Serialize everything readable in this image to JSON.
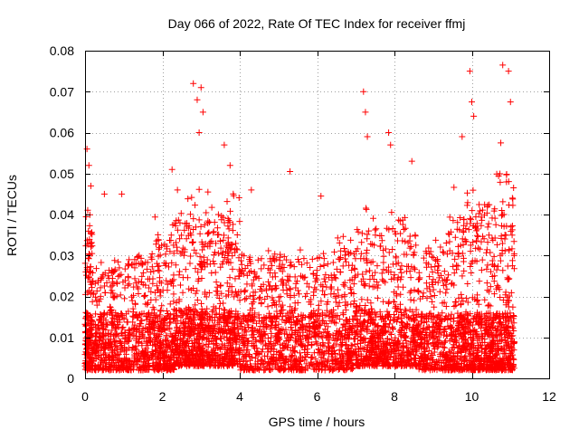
{
  "chart_data": {
    "type": "scatter",
    "title": "Day 066 of 2022, Rate Of TEC Index for receiver ffmj",
    "xlabel": "GPS time / hours",
    "ylabel": "ROTI / TECUs",
    "xlim": [
      0,
      12
    ],
    "ylim": [
      0,
      0.08
    ],
    "grid": true,
    "marker": "+",
    "color": "#ff0000",
    "x_ticks": [
      0,
      2,
      4,
      6,
      8,
      10,
      12
    ],
    "x_tick_labels": [
      "0",
      "2",
      "4",
      "6",
      "8",
      "10",
      "12"
    ],
    "y_ticks": [
      0,
      0.01,
      0.02,
      0.03,
      0.04,
      0.05,
      0.06,
      0.07,
      0.08
    ],
    "y_tick_labels": [
      "0",
      "0.01",
      "0.02",
      "0.03",
      "0.04",
      "0.05",
      "0.06",
      "0.07",
      "0.08"
    ],
    "highlighted_points": [
      {
        "x": 0.05,
        "y": 0.056
      },
      {
        "x": 0.1,
        "y": 0.052
      },
      {
        "x": 0.15,
        "y": 0.047
      },
      {
        "x": 0.5,
        "y": 0.045
      },
      {
        "x": 0.95,
        "y": 0.045
      },
      {
        "x": 2.25,
        "y": 0.051
      },
      {
        "x": 2.8,
        "y": 0.072
      },
      {
        "x": 2.9,
        "y": 0.068
      },
      {
        "x": 3.0,
        "y": 0.071
      },
      {
        "x": 3.05,
        "y": 0.065
      },
      {
        "x": 2.95,
        "y": 0.06
      },
      {
        "x": 3.6,
        "y": 0.057
      },
      {
        "x": 3.75,
        "y": 0.052
      },
      {
        "x": 4.3,
        "y": 0.046
      },
      {
        "x": 5.3,
        "y": 0.0505
      },
      {
        "x": 6.1,
        "y": 0.0445
      },
      {
        "x": 7.2,
        "y": 0.07
      },
      {
        "x": 7.25,
        "y": 0.065
      },
      {
        "x": 7.3,
        "y": 0.059
      },
      {
        "x": 7.85,
        "y": 0.06
      },
      {
        "x": 7.9,
        "y": 0.057
      },
      {
        "x": 8.45,
        "y": 0.053
      },
      {
        "x": 9.75,
        "y": 0.059
      },
      {
        "x": 9.95,
        "y": 0.075
      },
      {
        "x": 10.0,
        "y": 0.0675
      },
      {
        "x": 10.05,
        "y": 0.064
      },
      {
        "x": 10.8,
        "y": 0.0765
      },
      {
        "x": 10.95,
        "y": 0.075
      },
      {
        "x": 11.0,
        "y": 0.0675
      },
      {
        "x": 10.75,
        "y": 0.0575
      },
      {
        "x": 11.05,
        "y": 0.044
      }
    ],
    "density_profile": [
      {
        "x_from": 0.0,
        "x_to": 0.2,
        "n": 180,
        "y_min": 0.002,
        "y_peak": 0.04
      },
      {
        "x_from": 0.2,
        "x_to": 1.8,
        "n": 650,
        "y_min": 0.002,
        "y_peak": 0.03
      },
      {
        "x_from": 1.8,
        "x_to": 2.3,
        "n": 260,
        "y_min": 0.002,
        "y_peak": 0.038
      },
      {
        "x_from": 2.3,
        "x_to": 3.2,
        "n": 500,
        "y_min": 0.003,
        "y_peak": 0.045
      },
      {
        "x_from": 3.2,
        "x_to": 4.0,
        "n": 420,
        "y_min": 0.003,
        "y_peak": 0.043
      },
      {
        "x_from": 4.0,
        "x_to": 6.5,
        "n": 900,
        "y_min": 0.002,
        "y_peak": 0.03
      },
      {
        "x_from": 6.5,
        "x_to": 7.0,
        "n": 200,
        "y_min": 0.002,
        "y_peak": 0.033
      },
      {
        "x_from": 7.0,
        "x_to": 7.6,
        "n": 290,
        "y_min": 0.003,
        "y_peak": 0.04
      },
      {
        "x_from": 7.6,
        "x_to": 8.6,
        "n": 430,
        "y_min": 0.003,
        "y_peak": 0.04
      },
      {
        "x_from": 8.6,
        "x_to": 9.4,
        "n": 320,
        "y_min": 0.002,
        "y_peak": 0.033
      },
      {
        "x_from": 9.4,
        "x_to": 10.2,
        "n": 420,
        "y_min": 0.002,
        "y_peak": 0.045
      },
      {
        "x_from": 10.2,
        "x_to": 11.1,
        "n": 520,
        "y_min": 0.002,
        "y_peak": 0.048
      }
    ]
  }
}
